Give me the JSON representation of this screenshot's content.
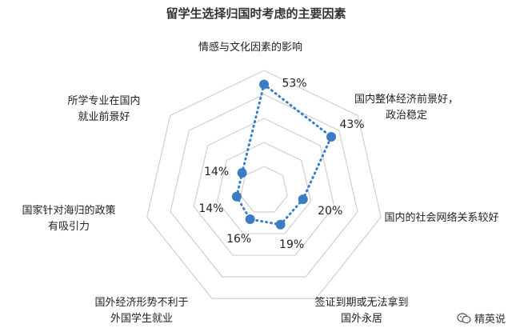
{
  "chart_data": {
    "type": "radar",
    "title": "留学生选择归国时考虑的主要因素",
    "categories": [
      [
        "情感与文化因素的影响"
      ],
      [
        "国内整体经济前景好，",
        "政治稳定"
      ],
      [
        "国内的社会网络关系较好"
      ],
      [
        "签证到期或无法拿到",
        "国外永居"
      ],
      [
        "国外经济形势不利于",
        "外国学生就业"
      ],
      [
        "国家针对海归的政策",
        "有吸引力"
      ],
      [
        "所学专业在国内",
        "就业前景好"
      ]
    ],
    "values": [
      53,
      43,
      20,
      19,
      16,
      14,
      14
    ],
    "value_labels": [
      "53%",
      "43%",
      "20%",
      "19%",
      "16%",
      "14%",
      "14%"
    ],
    "max": 60,
    "rings": 5,
    "series_color": "#3b7dc4",
    "grid_color": "#d0d0d0"
  },
  "watermark": {
    "text": "精英说",
    "icon": "wechat-icon"
  }
}
